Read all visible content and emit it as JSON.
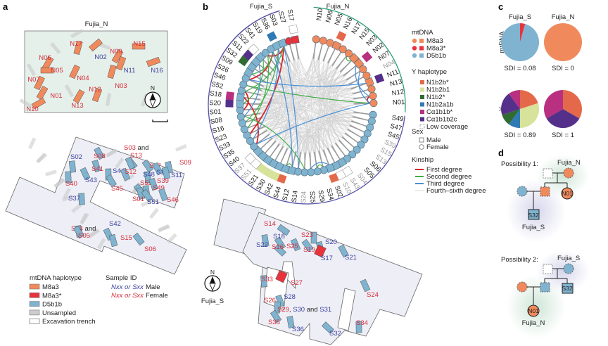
{
  "panels": {
    "a": "a",
    "b": "b",
    "c": "c",
    "d": "d"
  },
  "colors": {
    "M8a3": "#f08a5d",
    "M8a3*": "#e8333d",
    "D5b1b": "#7fb3cf",
    "N1b2b*": "#e4694a",
    "N1b2b1": "#d7e29a",
    "N1b2*": "#2f6b33",
    "N1b2a1b": "#2f7ab5",
    "Cα1b1b*": "#b8307f",
    "Cα1b1b2c": "#55308a",
    "first": "#d7262a",
    "second": "#3fae49",
    "third": "#4a8fd8",
    "fourth": "#c9c9c9",
    "fujia_n_arc": "#2a9d74",
    "fujia_s_arc": "#5551a8",
    "trench_fill": "#eeeff6",
    "north_fill": "#e6f0ea"
  },
  "panel_a": {
    "north_title": "Fujia_N",
    "north_burials": [
      {
        "id": "N17",
        "sex": "female"
      },
      {
        "id": "N02",
        "sex": "male"
      },
      {
        "id": "N09",
        "sex": "female"
      },
      {
        "id": "N15",
        "sex": "female"
      },
      {
        "id": "N06",
        "sex": "female"
      },
      {
        "id": "N05",
        "sex": "female"
      },
      {
        "id": "N11",
        "sex": "male"
      },
      {
        "id": "N16",
        "sex": "male"
      },
      {
        "id": "N07",
        "sex": "female"
      },
      {
        "id": "N04",
        "sex": "female"
      },
      {
        "id": "N03",
        "sex": "female"
      },
      {
        "id": "N12",
        "sex": "female"
      },
      {
        "id": "N01",
        "sex": "female"
      },
      {
        "id": "N13",
        "sex": "female"
      },
      {
        "id": "N10",
        "sex": "female"
      }
    ],
    "compass_label": "N",
    "south_burials": [
      {
        "id": "S03",
        "sex": "female",
        "suffix": " and"
      },
      {
        "id": "S13",
        "sex": "female"
      },
      {
        "id": "S02",
        "sex": "male"
      },
      {
        "id": "S08",
        "sex": "female"
      },
      {
        "id": "S09",
        "sex": "female"
      },
      {
        "id": "S47",
        "sex": "female"
      },
      {
        "id": "S41",
        "sex": "female"
      },
      {
        "id": "S44",
        "sex": "male"
      },
      {
        "id": "S12",
        "sex": "female"
      },
      {
        "id": "S48",
        "sex": "male"
      },
      {
        "id": "S10",
        "sex": "male"
      },
      {
        "id": "S11",
        "sex": "male"
      },
      {
        "id": "S52",
        "sex": "female"
      },
      {
        "id": "S39",
        "sex": "female"
      },
      {
        "id": "S40",
        "sex": "female"
      },
      {
        "id": "S43",
        "sex": "male"
      },
      {
        "id": "S49",
        "sex": "female"
      },
      {
        "id": "S45",
        "sex": "female"
      },
      {
        "id": "S01",
        "sex": "female"
      },
      {
        "id": "S51",
        "sex": "male"
      },
      {
        "id": "S46",
        "sex": "female"
      },
      {
        "id": "S37",
        "sex": "male"
      },
      {
        "id": "S42",
        "sex": "male"
      },
      {
        "id": "S04",
        "sex": "female",
        "suffix": " and"
      },
      {
        "id": "S05",
        "sex": "female"
      },
      {
        "id": "S15",
        "sex": "female"
      },
      {
        "id": "S06",
        "sex": "female"
      }
    ],
    "legend": {
      "mt_title": "mtDNA haplotype",
      "items": [
        {
          "label": "M8a3",
          "kind": "M8a3"
        },
        {
          "label": "M8a3*",
          "kind": "M8a3*"
        },
        {
          "label": "D5b1b",
          "kind": "D5b1b"
        },
        {
          "label": "Unsampled",
          "kind": "unsampled"
        },
        {
          "label": "Excavation trench",
          "kind": "trench"
        }
      ],
      "id_title": "Sample ID",
      "male_codes": "Nxx or Sxx",
      "male_word": "Male",
      "female_codes": "Nxx or Sxx",
      "female_word": "Female"
    }
  },
  "panel_b": {
    "group_s": "Fujia_S",
    "group_n": "Fujia_N",
    "nodes_n": [
      {
        "id": "N10",
        "sex": "F",
        "mt": "M8a3"
      },
      {
        "id": "N06",
        "sex": "F",
        "mt": "M8a3"
      },
      {
        "id": "N05",
        "sex": "F",
        "mt": "M8a3"
      },
      {
        "id": "N16",
        "sex": "M",
        "mt": "M8a3",
        "y": "N1b2b*"
      },
      {
        "id": "N17",
        "sex": "F",
        "mt": "M8a3"
      },
      {
        "id": "N15",
        "sex": "F",
        "mt": "M8a3"
      },
      {
        "id": "N03",
        "sex": "M",
        "mt": "M8a3"
      },
      {
        "id": "N02",
        "sex": "M",
        "mt": "M8a3",
        "y": "Cα1b1b*"
      },
      {
        "id": "N07",
        "sex": "F",
        "mt": "M8a3"
      },
      {
        "id": "N04",
        "sex": "F",
        "mt": "M8a3",
        "low": true
      },
      {
        "id": "N11",
        "sex": "M",
        "mt": "M8a3",
        "y": "Cα1b1b2c"
      },
      {
        "id": "N13",
        "sex": "F",
        "mt": "M8a3"
      },
      {
        "id": "N12",
        "sex": "F",
        "mt": "M8a3"
      },
      {
        "id": "N01",
        "sex": "F",
        "mt": "M8a3"
      }
    ],
    "nodes_s": [
      {
        "id": "S49",
        "sex": "F",
        "mt": "D5b1b"
      },
      {
        "id": "S47",
        "sex": "F",
        "mt": "D5b1b"
      },
      {
        "id": "S45",
        "sex": "F",
        "mt": "D5b1b"
      },
      {
        "id": "S39",
        "sex": "F",
        "mt": "D5b1b",
        "low": true
      },
      {
        "id": "S15",
        "sex": "F",
        "mt": "D5b1b",
        "low": true
      },
      {
        "id": "S13",
        "sex": "F",
        "mt": "D5b1b",
        "low": true
      },
      {
        "id": "S06",
        "sex": "F",
        "mt": "D5b1b"
      },
      {
        "id": "S05",
        "sex": "F",
        "mt": "D5b1b"
      },
      {
        "id": "S04",
        "sex": "F",
        "mt": "D5b1b",
        "low": true
      },
      {
        "id": "S43",
        "sex": "M",
        "mt": "D5b1b",
        "low": true,
        "y": "low"
      },
      {
        "id": "S10",
        "sex": "M",
        "mt": "D5b1b",
        "low": true,
        "y": "low"
      },
      {
        "id": "S02",
        "sex": "M",
        "mt": "D5b1b",
        "y": "N1b2b*"
      },
      {
        "id": "S34",
        "sex": "F",
        "mt": "D5b1b"
      },
      {
        "id": "S29",
        "sex": "F",
        "mt": "D5b1b"
      },
      {
        "id": "S25",
        "sex": "F",
        "mt": "D5b1b"
      },
      {
        "id": "S24",
        "sex": "F",
        "mt": "D5b1b",
        "low": true
      },
      {
        "id": "S14",
        "sex": "F",
        "mt": "D5b1b"
      },
      {
        "id": "S12",
        "sex": "M",
        "mt": "D5b1b"
      },
      {
        "id": "S44",
        "sex": "M",
        "mt": "D5b1b",
        "y": "N1b2b*"
      },
      {
        "id": "S42",
        "sex": "M",
        "mt": "D5b1b",
        "y": "N1b2b1"
      },
      {
        "id": "S30",
        "sex": "M",
        "mt": "D5b1b",
        "y": "N1b2b1"
      },
      {
        "id": "S21",
        "sex": "M",
        "mt": "D5b1b",
        "y": "N1b2b1"
      },
      {
        "id": "S51",
        "sex": "M",
        "mt": "D5b1b",
        "low": true,
        "y": "low"
      },
      {
        "id": "S37",
        "sex": "M",
        "mt": "D5b1b",
        "low": true,
        "y": "low"
      },
      {
        "id": "S40",
        "sex": "F",
        "mt": "D5b1b"
      },
      {
        "id": "S35",
        "sex": "F",
        "mt": "D5b1b"
      },
      {
        "id": "S33",
        "sex": "F",
        "mt": "D5b1b"
      },
      {
        "id": "S23",
        "sex": "F",
        "mt": "D5b1b"
      },
      {
        "id": "S16",
        "sex": "F",
        "mt": "D5b1b"
      },
      {
        "id": "S08",
        "sex": "F",
        "mt": "D5b1b"
      },
      {
        "id": "S01",
        "sex": "F",
        "mt": "D5b1b"
      },
      {
        "id": "S20",
        "sex": "M",
        "mt": "D5b1b",
        "y": "Cα1b1b2c"
      },
      {
        "id": "S18",
        "sex": "M",
        "mt": "D5b1b",
        "y": "Cα1b1b*"
      },
      {
        "id": "S52",
        "sex": "F",
        "mt": "D5b1b"
      },
      {
        "id": "S46",
        "sex": "F",
        "mt": "D5b1b"
      },
      {
        "id": "S26",
        "sex": "F",
        "mt": "D5b1b"
      },
      {
        "id": "S09",
        "sex": "M",
        "mt": "D5b1b"
      },
      {
        "id": "S32",
        "sex": "M",
        "mt": "D5b1b",
        "y": "N1b2*"
      },
      {
        "id": "S11",
        "sex": "M",
        "mt": "D5b1b",
        "y": "Cα1b1b2c"
      },
      {
        "id": "S22",
        "sex": "M",
        "mt": "D5b1b",
        "y": "low"
      },
      {
        "id": "S41",
        "sex": "F",
        "mt": "D5b1b"
      },
      {
        "id": "S19",
        "sex": "F",
        "mt": "D5b1b"
      },
      {
        "id": "S36",
        "sex": "M",
        "mt": "D5b1b",
        "y": "N1b2a1b"
      },
      {
        "id": "S03",
        "sex": "M",
        "mt": "D5b1b"
      },
      {
        "id": "S27",
        "sex": "F",
        "mt": "M8a3*"
      },
      {
        "id": "S17",
        "sex": "M",
        "mt": "M8a3*",
        "y": "low"
      }
    ],
    "kinship": [
      {
        "a": "S41",
        "b": "S03",
        "degree": "first"
      },
      {
        "a": "S26",
        "b": "S19",
        "degree": "first"
      },
      {
        "a": "S18",
        "b": "S40",
        "degree": "first"
      },
      {
        "a": "S33",
        "b": "S03",
        "degree": "first"
      },
      {
        "a": "S01",
        "b": "S52",
        "degree": "first"
      },
      {
        "a": "N12",
        "b": "N01",
        "degree": "first"
      },
      {
        "a": "S46",
        "b": "N01",
        "degree": "second"
      },
      {
        "a": "S52",
        "b": "S03",
        "degree": "second"
      },
      {
        "a": "S08",
        "b": "S24",
        "degree": "second"
      },
      {
        "a": "S16",
        "b": "S36",
        "degree": "second"
      },
      {
        "a": "S12",
        "b": "S44",
        "degree": "second"
      },
      {
        "a": "S29",
        "b": "S34",
        "degree": "second"
      },
      {
        "a": "N15",
        "b": "N03",
        "degree": "second"
      },
      {
        "a": "S09",
        "b": "S19",
        "degree": "second"
      },
      {
        "a": "S20",
        "b": "S22",
        "degree": "second"
      },
      {
        "a": "S23",
        "b": "S41",
        "degree": "second"
      },
      {
        "a": "S26",
        "b": "N11",
        "degree": "third"
      },
      {
        "a": "S40",
        "b": "N01",
        "degree": "third"
      },
      {
        "a": "S14",
        "b": "S03",
        "degree": "third"
      },
      {
        "a": "N02",
        "b": "N12",
        "degree": "third"
      },
      {
        "a": "S12",
        "b": "S19",
        "degree": "third"
      },
      {
        "a": "S25",
        "b": "S02",
        "degree": "third"
      },
      {
        "a": "S35",
        "b": "S36",
        "degree": "third"
      },
      {
        "a": "N07",
        "b": "N01",
        "degree": "third"
      },
      {
        "a": "S08",
        "b": "S11",
        "degree": "third"
      }
    ],
    "legend": {
      "mt_title": "mtDNA",
      "mt_items": [
        {
          "label": "M8a3",
          "kind": "M8a3"
        },
        {
          "label": "M8a3*",
          "kind": "M8a3*"
        },
        {
          "label": "D5b1b",
          "kind": "D5b1b"
        }
      ],
      "y_title": "Y haplotype",
      "y_items": [
        {
          "label": "N1b2b*",
          "kind": "N1b2b*"
        },
        {
          "label": "N1b2b1",
          "kind": "N1b2b1"
        },
        {
          "label": "N1b2*",
          "kind": "N1b2*"
        },
        {
          "label": "N1b2a1b",
          "kind": "N1b2a1b"
        },
        {
          "label": "Cα1b1b*",
          "kind": "Cα1b1b*"
        },
        {
          "label": "Cα1b1b2c",
          "kind": "Cα1b1b2c"
        },
        {
          "label": "Low coverage",
          "kind": "low"
        }
      ],
      "sex_title": "Sex",
      "sex_items": [
        {
          "label": "Male",
          "shape": "square"
        },
        {
          "label": "Female",
          "shape": "circle"
        }
      ],
      "kin_title": "Kinship",
      "kin_items": [
        {
          "label": "First degree",
          "kind": "first"
        },
        {
          "label": "Second degree",
          "kind": "second"
        },
        {
          "label": "Third degree",
          "kind": "third"
        },
        {
          "label": "Fourth–sixth degree",
          "kind": "fourth"
        }
      ]
    },
    "south_map": {
      "title": "Fujia_S",
      "compass_label": "N",
      "burials": [
        {
          "id": "S14",
          "sex": "female"
        },
        {
          "id": "S18",
          "sex": "male"
        },
        {
          "id": "S22",
          "sex": "male"
        },
        {
          "id": "S16",
          "sex": "female"
        },
        {
          "id": "S25",
          "sex": "female"
        },
        {
          "id": "S23",
          "sex": "female"
        },
        {
          "id": "S19",
          "sex": "female"
        },
        {
          "id": "S20",
          "sex": "male"
        },
        {
          "id": "S17",
          "sex": "male"
        },
        {
          "id": "S21",
          "sex": "male"
        },
        {
          "id": "S33",
          "sex": "female"
        },
        {
          "id": "S27",
          "sex": "female"
        },
        {
          "id": "S28",
          "sex": "male"
        },
        {
          "id": "S26",
          "sex": "female"
        },
        {
          "id": "S35",
          "sex": "female"
        },
        {
          "id": "S36",
          "sex": "male"
        },
        {
          "id": "S32",
          "sex": "male"
        },
        {
          "id": "S24",
          "sex": "female"
        },
        {
          "id": "S34",
          "sex": "female"
        }
      ],
      "group_label": {
        "a": "S29",
        "sep1": ", ",
        "b": "S30",
        "sep2": " and ",
        "c": "S31"
      }
    }
  },
  "panel_c": {
    "row_mt": "mtDNA",
    "row_y": "Y",
    "col_s": "Fujia_S",
    "col_n": "Fujia_N",
    "pies": [
      {
        "row": "mt",
        "group": "Fujia_S",
        "sdi": "SDI = 0.08",
        "slices": [
          {
            "kind": "M8a3*",
            "value": 2
          },
          {
            "kind": "D5b1b",
            "value": 44
          }
        ]
      },
      {
        "row": "mt",
        "group": "Fujia_N",
        "sdi": "SDI = 0",
        "slices": [
          {
            "kind": "M8a3",
            "value": 1
          }
        ]
      },
      {
        "row": "y",
        "group": "Fujia_S",
        "sdi": "SDI = 0.89",
        "slices": [
          {
            "kind": "N1b2b*",
            "value": 2
          },
          {
            "kind": "N1b2b1",
            "value": 3
          },
          {
            "kind": "N1b2a1b",
            "value": 1
          },
          {
            "kind": "N1b2*",
            "value": 1
          },
          {
            "kind": "Cα1b1b2c",
            "value": 2
          },
          {
            "kind": "Cα1b1b*",
            "value": 1
          }
        ]
      },
      {
        "row": "y",
        "group": "Fujia_N",
        "sdi": "SDI = 1",
        "slices": [
          {
            "kind": "N1b2b*",
            "value": 1
          },
          {
            "kind": "Cα1b1b2c",
            "value": 1
          },
          {
            "kind": "Cα1b1b*",
            "value": 1
          }
        ]
      }
    ]
  },
  "panel_d": {
    "p1": {
      "title": "Possibility 1:",
      "top_group": "Fujia_N",
      "bottom_group": "Fujia_S",
      "child": "S32",
      "other": "N01"
    },
    "p2": {
      "title": "Possibility 2:",
      "top_group": "Fujia_S",
      "bottom_group": "Fujia_N",
      "child": "N01",
      "other": "S32"
    }
  }
}
